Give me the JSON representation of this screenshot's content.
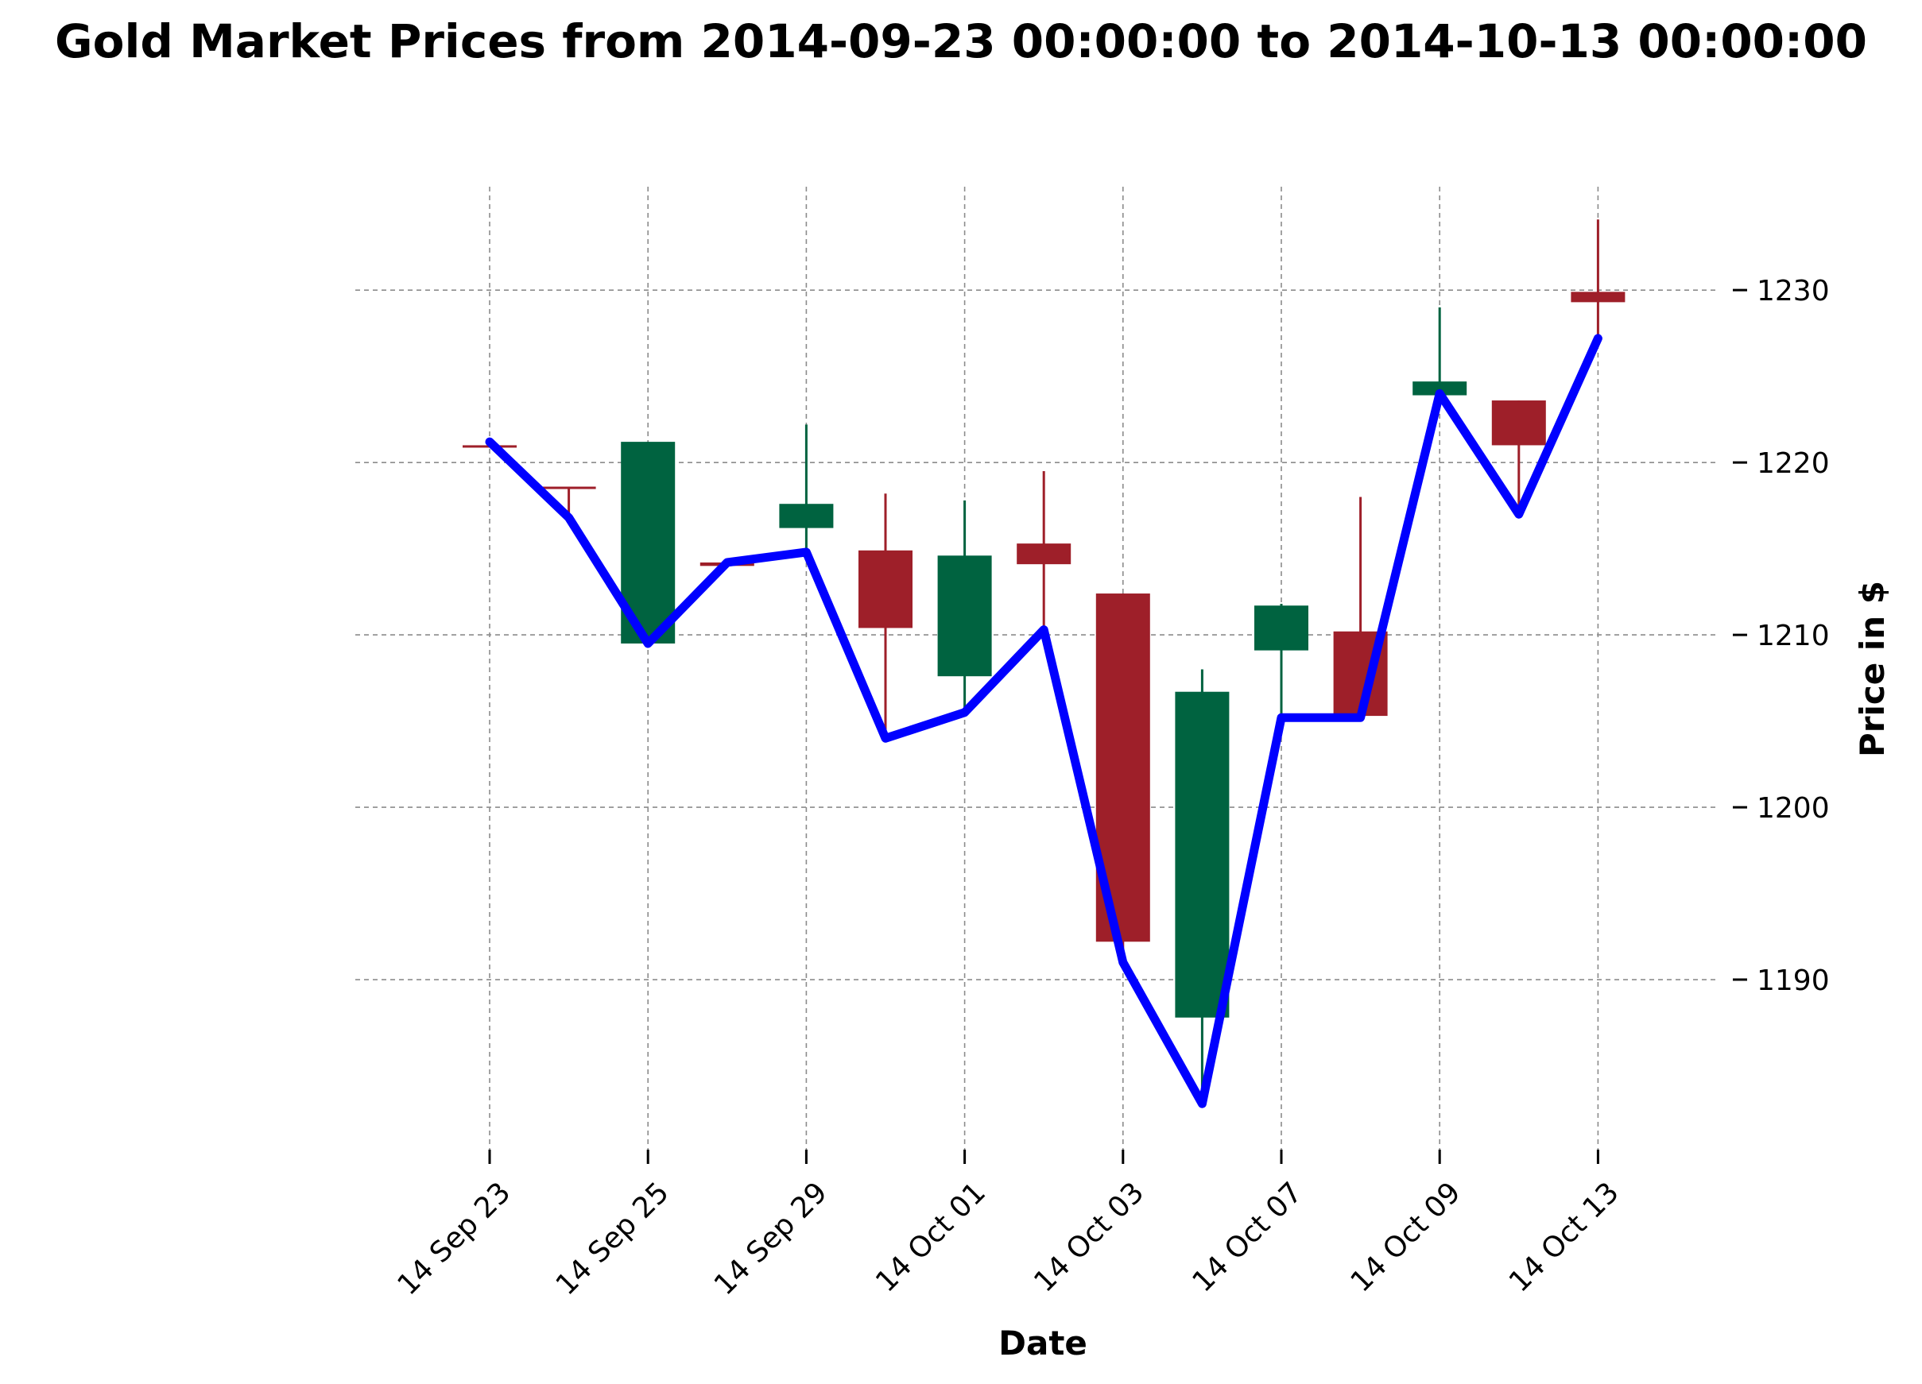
{
  "chart_data": {
    "type": "candlestick",
    "title": "Gold Market Prices from 2014-09-23 00:00:00 to 2014-10-13 00:00:00",
    "xlabel": "Date",
    "ylabel": "Price in $",
    "ylim": [
      1180,
      1236
    ],
    "yticks": [
      1190,
      1200,
      1210,
      1220,
      1230
    ],
    "grid": true,
    "colors": {
      "up": "#006340",
      "down": "#9e1f29",
      "line": "#0000ff",
      "grid": "#8c8c8c"
    },
    "xticks": [
      {
        "index": 0,
        "label": "14 Sep 23"
      },
      {
        "index": 2,
        "label": "14 Sep 25"
      },
      {
        "index": 4,
        "label": "14 Sep 29"
      },
      {
        "index": 6,
        "label": "14 Oct 01"
      },
      {
        "index": 8,
        "label": "14 Oct 03"
      },
      {
        "index": 10,
        "label": "14 Oct 07"
      },
      {
        "index": 12,
        "label": "14 Oct 09"
      },
      {
        "index": 14,
        "label": "14 Oct 13"
      }
    ],
    "candles": [
      {
        "date": "2014-09-23",
        "open": 1221.0,
        "high": 1221.0,
        "low": 1220.9,
        "close": 1220.9
      },
      {
        "date": "2014-09-24",
        "open": 1218.6,
        "high": 1218.6,
        "low": 1216.7,
        "close": 1218.5
      },
      {
        "date": "2014-09-25",
        "open": 1209.5,
        "high": 1221.2,
        "low": 1209.5,
        "close": 1221.2
      },
      {
        "date": "2014-09-26",
        "open": 1214.2,
        "high": 1214.2,
        "low": 1214.0,
        "close": 1214.0
      },
      {
        "date": "2014-09-29",
        "open": 1216.2,
        "high": 1222.2,
        "low": 1214.8,
        "close": 1217.6
      },
      {
        "date": "2014-09-30",
        "open": 1214.9,
        "high": 1218.2,
        "low": 1204.0,
        "close": 1210.4
      },
      {
        "date": "2014-10-01",
        "open": 1207.6,
        "high": 1217.8,
        "low": 1205.5,
        "close": 1214.6
      },
      {
        "date": "2014-10-02",
        "open": 1215.3,
        "high": 1219.5,
        "low": 1210.2,
        "close": 1214.1
      },
      {
        "date": "2014-10-03",
        "open": 1212.4,
        "high": 1212.4,
        "low": 1191.0,
        "close": 1192.2
      },
      {
        "date": "2014-10-06",
        "open": 1187.8,
        "high": 1208.0,
        "low": 1183.0,
        "close": 1206.7
      },
      {
        "date": "2014-10-07",
        "open": 1209.1,
        "high": 1211.8,
        "low": 1205.2,
        "close": 1211.7
      },
      {
        "date": "2014-10-08",
        "open": 1210.2,
        "high": 1218.0,
        "low": 1205.2,
        "close": 1205.3
      },
      {
        "date": "2014-10-09",
        "open": 1223.9,
        "high": 1229.0,
        "low": 1223.9,
        "close": 1224.7
      },
      {
        "date": "2014-10-10",
        "open": 1223.6,
        "high": 1223.6,
        "low": 1216.9,
        "close": 1221.0
      },
      {
        "date": "2014-10-13",
        "open": 1229.9,
        "high": 1234.1,
        "low": 1227.2,
        "close": 1229.3
      }
    ],
    "line_series": {
      "values": [
        1221.2,
        1216.8,
        1209.5,
        1214.2,
        1214.8,
        1204.0,
        1205.5,
        1210.3,
        1191.0,
        1182.8,
        1205.2,
        1205.2,
        1224.0,
        1217.0,
        1227.2
      ]
    }
  }
}
